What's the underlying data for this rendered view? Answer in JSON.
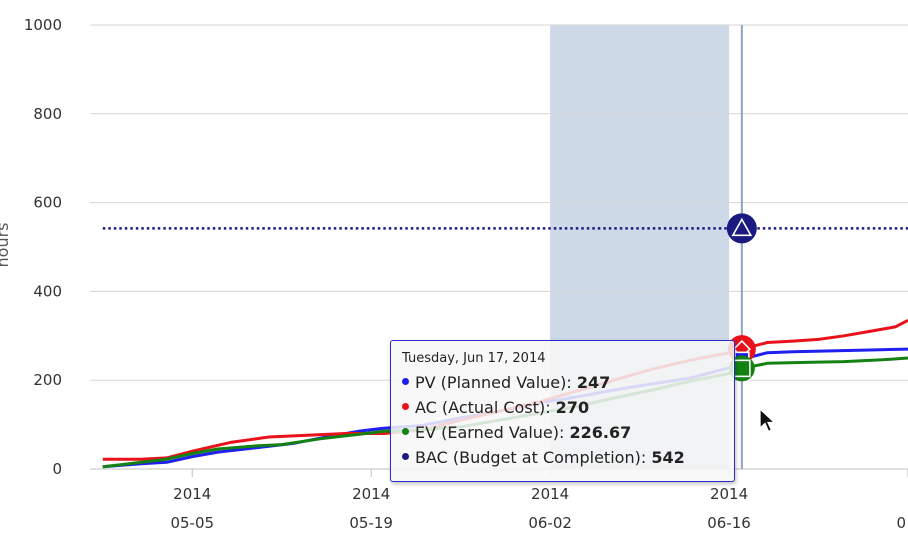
{
  "chart_data": {
    "type": "line",
    "ylabel": "hours",
    "ylim": [
      0,
      1000
    ],
    "yticks": [
      0,
      200,
      400,
      600,
      800,
      1000
    ],
    "xrange": [
      "2014-04-27",
      "2014-06-30"
    ],
    "xticks": [
      {
        "date": "2014-05-05",
        "year": "2014",
        "label": "05-05"
      },
      {
        "date": "2014-05-19",
        "year": "2014",
        "label": "05-19"
      },
      {
        "date": "2014-06-02",
        "year": "2014",
        "label": "06-02"
      },
      {
        "date": "2014-06-16",
        "year": "2014",
        "label": "06-16"
      },
      {
        "date": "2014-06-30",
        "year": "",
        "label": "0"
      }
    ],
    "plot_band": {
      "from": "2014-06-02",
      "to": "2014-06-16",
      "color": "#cdd9e6"
    },
    "crosshair": "2014-06-17",
    "series": [
      {
        "name": "PV (Planned Value)",
        "color": "#1f1fef",
        "marker": "square",
        "x": [
          "2014-04-28",
          "2014-05-01",
          "2014-05-03",
          "2014-05-05",
          "2014-05-07",
          "2014-05-10",
          "2014-05-13",
          "2014-05-16",
          "2014-05-18",
          "2014-05-20",
          "2014-05-23",
          "2014-05-26",
          "2014-05-29",
          "2014-06-01",
          "2014-06-04",
          "2014-06-07",
          "2014-06-10",
          "2014-06-13",
          "2014-06-16",
          "2014-06-17",
          "2014-06-19",
          "2014-06-21",
          "2014-06-24",
          "2014-06-27",
          "2014-06-30"
        ],
        "y": [
          5,
          12,
          15,
          28,
          38,
          48,
          58,
          75,
          85,
          92,
          98,
          115,
          130,
          148,
          162,
          178,
          192,
          205,
          228,
          247,
          262,
          264,
          266,
          268,
          270
        ]
      },
      {
        "name": "AC (Actual Cost)",
        "color": "#e9121b",
        "marker": "diamond",
        "x": [
          "2014-04-28",
          "2014-05-01",
          "2014-05-03",
          "2014-05-05",
          "2014-05-08",
          "2014-05-11",
          "2014-05-14",
          "2014-05-17",
          "2014-05-20",
          "2014-05-23",
          "2014-05-26",
          "2014-05-29",
          "2014-06-01",
          "2014-06-04",
          "2014-06-07",
          "2014-06-10",
          "2014-06-13",
          "2014-06-16",
          "2014-06-17",
          "2014-06-19",
          "2014-06-21",
          "2014-06-23",
          "2014-06-25",
          "2014-06-27",
          "2014-06-29",
          "2014-06-30"
        ],
        "y": [
          22,
          22,
          25,
          40,
          60,
          72,
          76,
          80,
          80,
          88,
          110,
          130,
          150,
          175,
          200,
          225,
          245,
          262,
          270,
          285,
          288,
          292,
          300,
          310,
          320,
          335
        ]
      },
      {
        "name": "EV (Earned Value)",
        "color": "#138213",
        "marker": "square",
        "x": [
          "2014-04-28",
          "2014-05-01",
          "2014-05-03",
          "2014-05-05",
          "2014-05-07",
          "2014-05-10",
          "2014-05-12",
          "2014-05-15",
          "2014-05-18",
          "2014-05-20",
          "2014-05-23",
          "2014-05-26",
          "2014-05-29",
          "2014-06-01",
          "2014-06-04",
          "2014-06-07",
          "2014-06-10",
          "2014-06-13",
          "2014-06-16",
          "2014-06-17",
          "2014-06-19",
          "2014-06-22",
          "2014-06-25",
          "2014-06-28",
          "2014-06-30"
        ],
        "y": [
          5,
          15,
          22,
          35,
          45,
          52,
          55,
          68,
          78,
          85,
          88,
          95,
          110,
          125,
          140,
          160,
          178,
          198,
          215,
          226.67,
          238,
          240,
          242,
          246,
          250
        ]
      },
      {
        "name": "BAC (Budget at Completion)",
        "color": "#1a1a80",
        "marker": "triangle",
        "x": [
          "2014-04-28",
          "2014-06-30"
        ],
        "y": [
          542,
          542
        ]
      }
    ],
    "tooltip": {
      "date": "Tuesday, Jun 17, 2014",
      "rows": [
        {
          "name": "PV (Planned Value)",
          "value": "247",
          "color": "#1f1fef"
        },
        {
          "name": "AC (Actual Cost)",
          "value": "270",
          "color": "#e9121b"
        },
        {
          "name": "EV (Earned Value)",
          "value": "226.67",
          "color": "#138213"
        },
        {
          "name": "BAC (Budget at Completion)",
          "value": "542",
          "color": "#1a1a80"
        }
      ]
    }
  }
}
